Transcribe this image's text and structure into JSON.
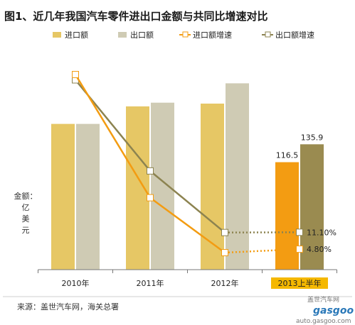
{
  "title": "图1、近几年我国汽车零件进出口金额与共同比增速对比",
  "source": "来源：盖世汽车网，海关总署",
  "watermark": {
    "brand": "gasgoo",
    "cn": "盖世汽车网",
    "url": "auto.gasgoo.com"
  },
  "colors": {
    "import_bar": "#e6c765",
    "import_bar_highlight": "#f39c12",
    "export_bar": "#cfcbb4",
    "export_bar_highlight": "#9a8b50",
    "import_growth_line": "#f39c12",
    "export_growth_line": "#8c8350",
    "highlight_tick_bg": "#f5b800"
  },
  "chart_data": {
    "type": "bar",
    "title": "图1、近几年我国汽车零件进出口金额与共同比增速对比",
    "ylabel": "金额：亿美元",
    "categories": [
      "2010年",
      "2011年",
      "2012年",
      "2013上半年"
    ],
    "highlight_category": "2013上半年",
    "legend_position": "top",
    "grid": false,
    "series": [
      {
        "name": "进口额",
        "kind": "bar",
        "values": [
          158,
          177,
          180,
          116.5
        ],
        "labels": [
          "",
          "",
          "",
          "116.5"
        ]
      },
      {
        "name": "出口额",
        "kind": "bar",
        "values": [
          158,
          181,
          202,
          135.9
        ],
        "labels": [
          "",
          "",
          "",
          "135.9"
        ]
      },
      {
        "name": "进口额增速",
        "kind": "line",
        "values": [
          70,
          24,
          3.5,
          4.8
        ],
        "labels": [
          "",
          "",
          "",
          "4.80%"
        ]
      },
      {
        "name": "出口额增速",
        "kind": "line",
        "values": [
          68,
          34,
          11,
          11.1
        ],
        "labels": [
          "",
          "",
          "",
          "11.10%"
        ]
      }
    ]
  }
}
